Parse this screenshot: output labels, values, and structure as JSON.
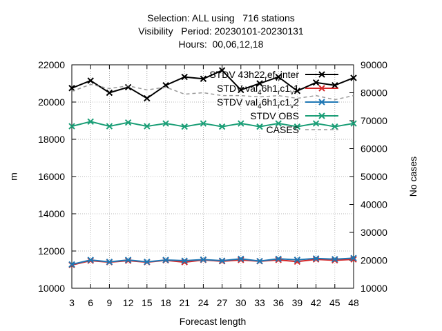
{
  "title_lines": [
    "Selection: ALL using   716 stations",
    "Visibility   Period: 20230101-20230131",
    "Hours:  00,06,12,18"
  ],
  "chart_data": {
    "type": "line",
    "xlabel": "Forecast length",
    "ylabel": "m",
    "y2label": "No cases",
    "x": [
      3,
      6,
      9,
      12,
      15,
      18,
      21,
      24,
      27,
      30,
      33,
      36,
      39,
      42,
      45,
      48
    ],
    "xlim": [
      3,
      48
    ],
    "ylim": [
      10000,
      22000
    ],
    "y2lim": [
      10000,
      90000
    ],
    "yticks": [
      10000,
      12000,
      14000,
      16000,
      18000,
      20000,
      22000
    ],
    "y2ticks": [
      10000,
      20000,
      30000,
      40000,
      50000,
      60000,
      70000,
      80000,
      90000
    ],
    "grid": true,
    "legend_position": "top-right",
    "series": [
      {
        "name": "STDV 43h22_ref_winter",
        "legend_parts": [
          [
            "STDV 43h22",
            ""
          ],
          [
            "r",
            "sub"
          ],
          [
            "ef",
            ""
          ],
          [
            "w",
            "sub"
          ],
          [
            "inter",
            ""
          ]
        ],
        "color": "#000000",
        "marker": "x",
        "axis": "y1",
        "values": [
          20750,
          21150,
          20500,
          20800,
          20200,
          20900,
          21350,
          21250,
          21700,
          20650,
          21000,
          21350,
          20600,
          21050,
          20900,
          21300
        ]
      },
      {
        "name": "STDV val_46h1_rc1_v1",
        "legend_parts": [
          [
            "STDV val",
            ""
          ],
          [
            "4",
            "sub"
          ],
          [
            "6h1",
            ""
          ],
          [
            "r",
            "sub"
          ],
          [
            "c1",
            ""
          ],
          [
            "v",
            "sub"
          ],
          [
            "1",
            ""
          ]
        ],
        "color": "#d62728",
        "marker": "x",
        "axis": "y1",
        "values": [
          11250,
          11480,
          11400,
          11480,
          11400,
          11500,
          11400,
          11520,
          11450,
          11520,
          11450,
          11520,
          11430,
          11550,
          11500,
          11550
        ]
      },
      {
        "name": "STDV val_46h1_rc1_v2",
        "legend_parts": [
          [
            "STDV val",
            ""
          ],
          [
            "4",
            "sub"
          ],
          [
            "6h1",
            ""
          ],
          [
            "r",
            "sub"
          ],
          [
            "c1",
            ""
          ],
          [
            "v",
            "sub"
          ],
          [
            "2",
            ""
          ]
        ],
        "color": "#1f77b4",
        "marker": "x",
        "axis": "y1",
        "values": [
          11280,
          11520,
          11420,
          11520,
          11420,
          11520,
          11480,
          11540,
          11480,
          11580,
          11460,
          11580,
          11530,
          11600,
          11560,
          11620
        ]
      },
      {
        "name": "STDV OBS",
        "legend_parts": [
          [
            "STDV OBS",
            ""
          ]
        ],
        "color": "#1a9e76",
        "marker": "x",
        "axis": "y1",
        "values": [
          18700,
          18950,
          18700,
          18900,
          18700,
          18850,
          18680,
          18850,
          18680,
          18850,
          18680,
          18850,
          18680,
          18850,
          18680,
          18850
        ]
      },
      {
        "name": "CASES",
        "legend_parts": [
          [
            "CASES",
            ""
          ]
        ],
        "color": "#999999",
        "marker": "none",
        "dashed": true,
        "axis": "y2",
        "values": [
          80500,
          83000,
          81500,
          82500,
          81000,
          82000,
          79500,
          80000,
          79000,
          79000,
          78500,
          79000,
          78000,
          79000,
          77500,
          79000
        ]
      }
    ]
  }
}
